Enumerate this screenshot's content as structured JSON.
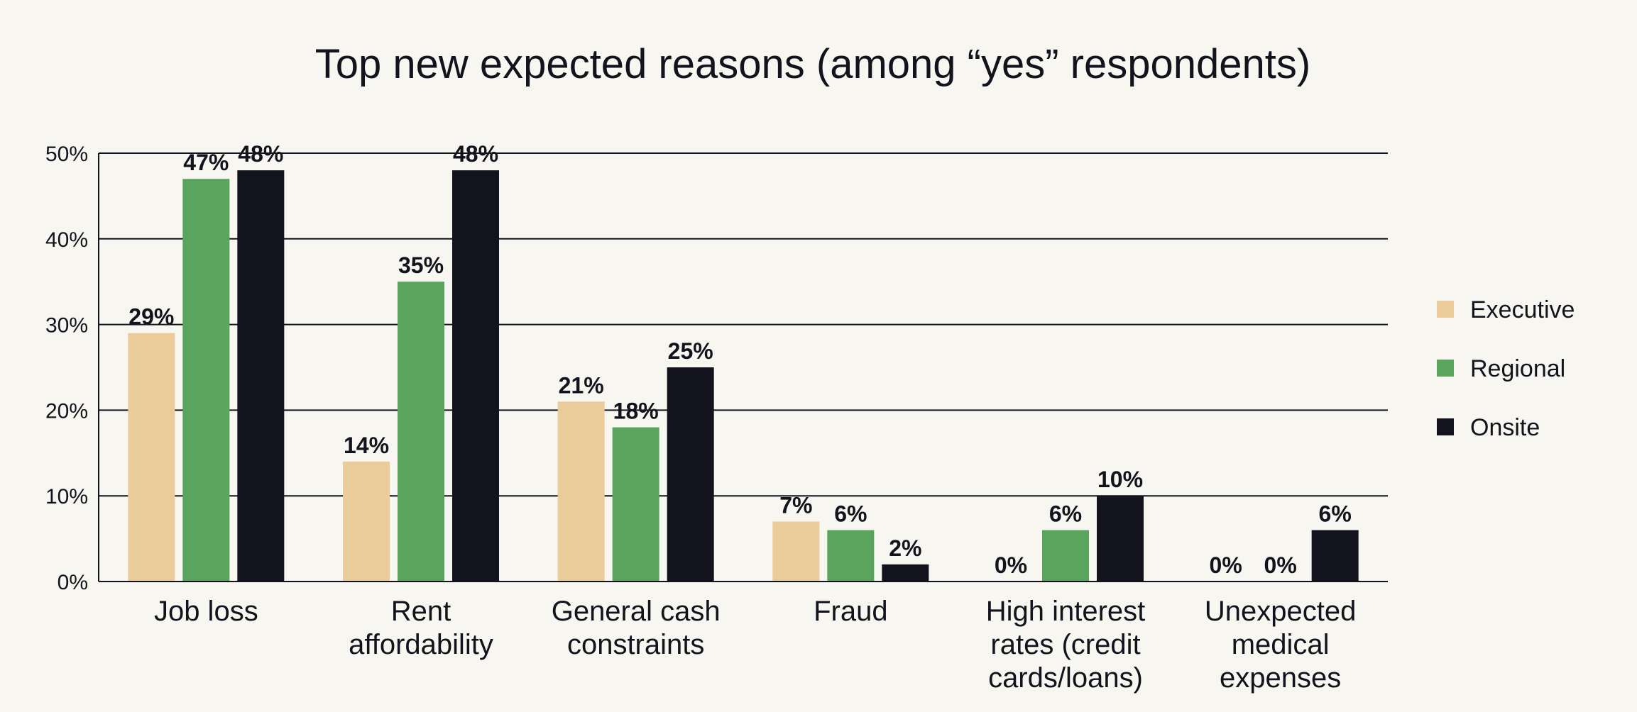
{
  "chart_data": {
    "type": "bar",
    "title": "Top new expected reasons (among “yes” respondents)",
    "categories": [
      [
        "Job loss"
      ],
      [
        "Rent",
        "affordability"
      ],
      [
        "General cash",
        "constraints"
      ],
      [
        "Fraud"
      ],
      [
        "High interest",
        "rates (credit",
        "cards/loans)"
      ],
      [
        "Unexpected",
        "medical",
        "expenses"
      ]
    ],
    "series": [
      {
        "name": "Executive",
        "color": "#ebcb9a",
        "values": [
          29,
          14,
          21,
          7,
          0,
          0
        ]
      },
      {
        "name": "Regional",
        "color": "#5aa55e",
        "values": [
          47,
          35,
          18,
          6,
          6,
          0
        ]
      },
      {
        "name": "Onsite",
        "color": "#12131c",
        "values": [
          48,
          48,
          25,
          2,
          10,
          6
        ]
      }
    ],
    "ylim": [
      0,
      50
    ],
    "yticks": [
      0,
      10,
      20,
      30,
      40,
      50
    ],
    "ytick_labels": [
      "0%",
      "10%",
      "20%",
      "30%",
      "40%",
      "50%"
    ],
    "value_suffix": "%",
    "grid": true,
    "legend_position": "right"
  }
}
